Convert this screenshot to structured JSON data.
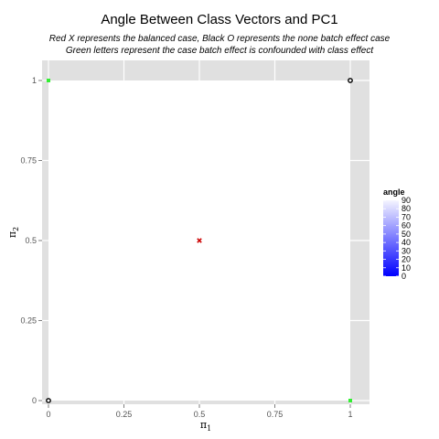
{
  "chart_data": {
    "type": "scatter",
    "title": "Angle Between Class Vectors and PC1",
    "subtitle": [
      "Red X represents the balanced case, Black O represents the none batch effect case",
      "Green letters represent the case batch effect is confounded with class effect"
    ],
    "xlabel": "π",
    "xlabel_sub": "1",
    "ylabel": "π",
    "ylabel_sub": "2",
    "xlim": [
      0,
      1
    ],
    "ylim": [
      0,
      1
    ],
    "x_ticks": [
      0,
      0.25,
      0.5,
      0.75,
      1
    ],
    "x_tick_labels": [
      "0",
      "0.25",
      "0.5",
      "0.75",
      "1"
    ],
    "y_ticks": [
      0,
      0.25,
      0.5,
      0.75,
      1
    ],
    "y_tick_labels": [
      "0",
      "0.25",
      "0.5",
      "0.75",
      "1"
    ],
    "grid": false,
    "points": [
      {
        "x": 0.5,
        "y": 0.5,
        "marker": "x",
        "color": "#cc0000"
      },
      {
        "x": 0,
        "y": 0,
        "marker": "o",
        "color": "#000000"
      },
      {
        "x": 1,
        "y": 1,
        "marker": "o",
        "color": "#000000"
      },
      {
        "x": 0,
        "y": 1,
        "marker": "letter",
        "color": "#33ee33"
      },
      {
        "x": 1,
        "y": 0,
        "marker": "letter",
        "color": "#33ee33"
      }
    ],
    "legend": {
      "title": "angle",
      "position": "right",
      "labels": [
        "90",
        "80",
        "70",
        "60",
        "50",
        "40",
        "30",
        "20",
        "10",
        "0"
      ],
      "color_low": "#0000ff",
      "color_high": "#f4f4ff"
    },
    "panel_color": "#e0e0e0"
  }
}
